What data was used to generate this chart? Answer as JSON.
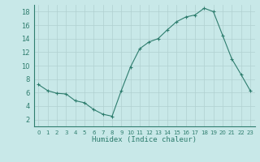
{
  "x": [
    0,
    1,
    2,
    3,
    4,
    5,
    6,
    7,
    8,
    9,
    10,
    11,
    12,
    13,
    14,
    15,
    16,
    17,
    18,
    19,
    20,
    21,
    22,
    23
  ],
  "y": [
    7.2,
    6.3,
    5.9,
    5.8,
    4.8,
    4.5,
    3.5,
    2.8,
    2.5,
    6.3,
    9.8,
    12.5,
    13.5,
    14.0,
    15.3,
    16.5,
    17.2,
    17.5,
    18.5,
    18.0,
    14.5,
    11.0,
    8.7,
    6.3
  ],
  "xlabel": "Humidex (Indice chaleur)",
  "ylim": [
    1,
    19
  ],
  "yticks": [
    2,
    4,
    6,
    8,
    10,
    12,
    14,
    16,
    18
  ],
  "xticks": [
    0,
    1,
    2,
    3,
    4,
    5,
    6,
    7,
    8,
    9,
    10,
    11,
    12,
    13,
    14,
    15,
    16,
    17,
    18,
    19,
    20,
    21,
    22,
    23
  ],
  "line_color": "#2e7d6e",
  "marker": "+",
  "bg_color": "#c8e8e8",
  "grid_color": "#b0d0d0",
  "axis_color": "#2e7d6e",
  "label_color": "#2e7d6e",
  "tick_label_color": "#2e7d6e"
}
